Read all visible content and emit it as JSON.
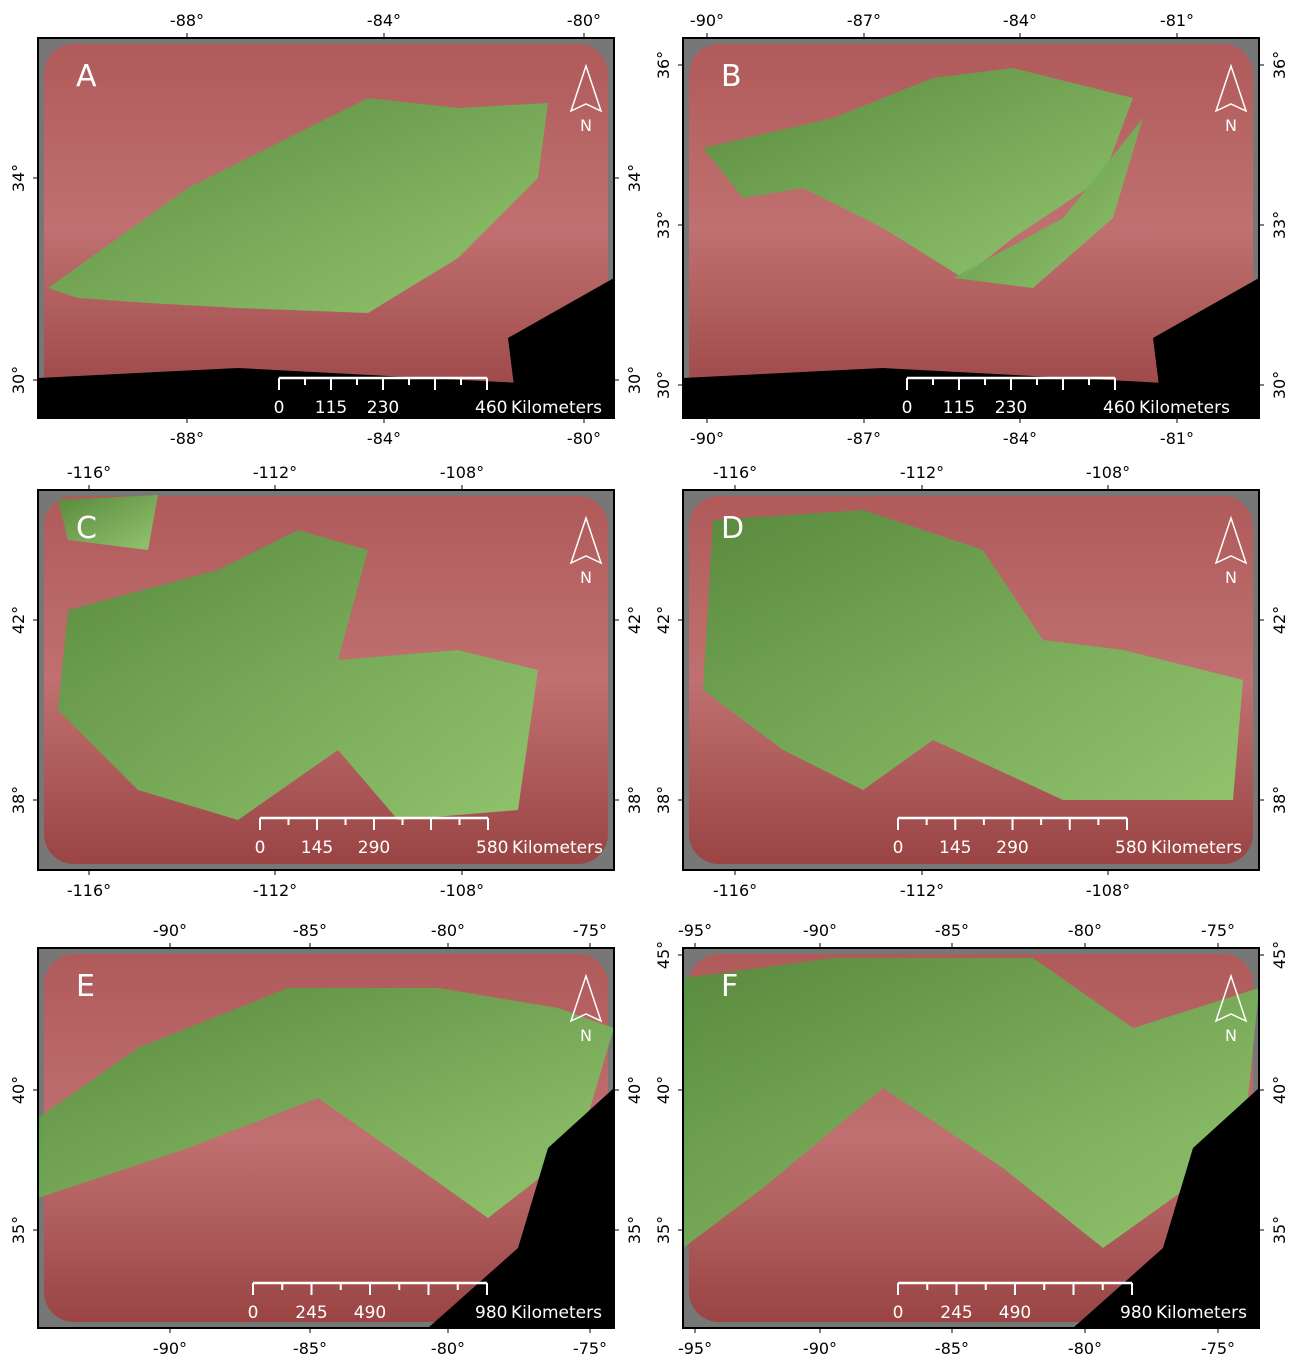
{
  "panels": [
    {
      "letter": "A",
      "top_ticks": [
        "-88°",
        "-84°",
        "-80°"
      ],
      "bottom_ticks": [
        "-88°",
        "-84°",
        "-80°"
      ],
      "left_ticks": [
        "34°",
        "30°"
      ],
      "right_ticks": [
        "34°",
        "30°"
      ],
      "scale_labels": [
        "0",
        "115",
        "230",
        "460"
      ],
      "scale_unit": "Kilometers",
      "north": "N"
    },
    {
      "letter": "B",
      "top_ticks": [
        "-90°",
        "-87°",
        "-84°",
        "-81°"
      ],
      "bottom_ticks": [
        "-90°",
        "-87°",
        "-84°",
        "-81°"
      ],
      "left_ticks": [
        "36°",
        "33°",
        "30°"
      ],
      "right_ticks": [
        "36°",
        "33°",
        "30°"
      ],
      "scale_labels": [
        "0",
        "115",
        "230",
        "460"
      ],
      "scale_unit": "Kilometers",
      "north": "N"
    },
    {
      "letter": "C",
      "top_ticks": [
        "-116°",
        "-112°",
        "-108°"
      ],
      "bottom_ticks": [
        "-116°",
        "-112°",
        "-108°"
      ],
      "left_ticks": [
        "42°",
        "38°"
      ],
      "right_ticks": [
        "42°",
        "38°"
      ],
      "scale_labels": [
        "0",
        "145",
        "290",
        "580"
      ],
      "scale_unit": "Kilometers",
      "north": "N"
    },
    {
      "letter": "D",
      "top_ticks": [
        "-116°",
        "-112°",
        "-108°"
      ],
      "bottom_ticks": [
        "-116°",
        "-112°",
        "-108°"
      ],
      "left_ticks": [
        "42°",
        "38°"
      ],
      "right_ticks": [
        "42°",
        "38°"
      ],
      "scale_labels": [
        "0",
        "145",
        "290",
        "580"
      ],
      "scale_unit": "Kilometers",
      "north": "N"
    },
    {
      "letter": "E",
      "top_ticks": [
        "-90°",
        "-85°",
        "-80°",
        "-75°"
      ],
      "bottom_ticks": [
        "-90°",
        "-85°",
        "-80°",
        "-75°"
      ],
      "left_ticks": [
        "40°",
        "35°"
      ],
      "right_ticks": [
        "40°",
        "35°"
      ],
      "scale_labels": [
        "0",
        "245",
        "490",
        "980"
      ],
      "scale_unit": "Kilometers",
      "north": "N"
    },
    {
      "letter": "F",
      "top_ticks": [
        "-95°",
        "-90°",
        "-85°",
        "-80°",
        "-75°"
      ],
      "bottom_ticks": [
        "-95°",
        "-90°",
        "-85°",
        "-80°",
        "-75°"
      ],
      "left_ticks": [
        "45°",
        "40°",
        "35°"
      ],
      "right_ticks": [
        "45°",
        "40°",
        "35°"
      ],
      "scale_labels": [
        "0",
        "245",
        "490",
        "980"
      ],
      "scale_unit": "Kilometers",
      "north": "N"
    }
  ]
}
